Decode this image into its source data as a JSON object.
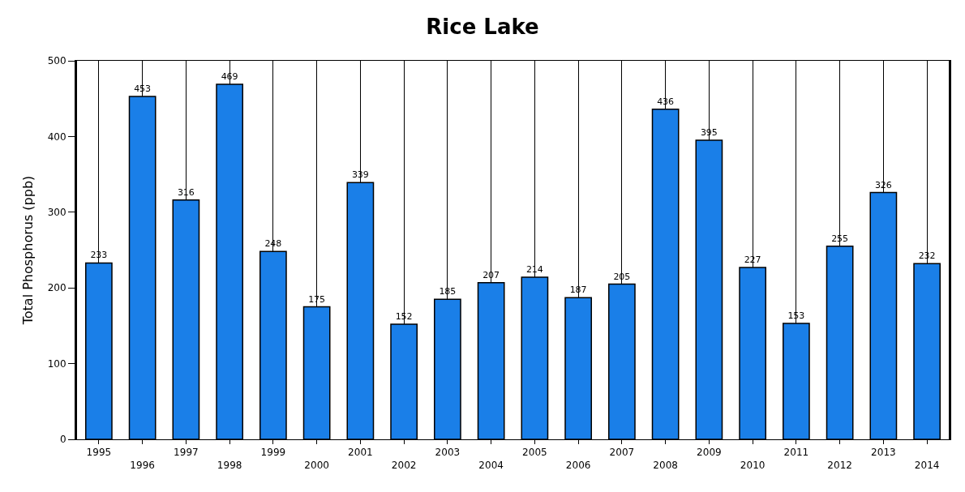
{
  "chart_data": {
    "type": "bar",
    "title": "Rice Lake",
    "ylabel": "Total Phosphorus (ppb)",
    "categories": [
      "1995",
      "1996",
      "1997",
      "1998",
      "1999",
      "2000",
      "2001",
      "2002",
      "2003",
      "2004",
      "2005",
      "2006",
      "2007",
      "2008",
      "2009",
      "2010",
      "2011",
      "2012",
      "2013",
      "2014"
    ],
    "series": [
      {
        "color": "#1a7fe8",
        "values": [
          233,
          453,
          316,
          469,
          248,
          175,
          339,
          152,
          185,
          207,
          214,
          187,
          205,
          436,
          395,
          227,
          153,
          255,
          326,
          232
        ]
      }
    ],
    "ylim": [
      0,
      500
    ],
    "yticks": [
      0,
      100,
      200,
      300,
      400,
      500
    ],
    "grid": "x",
    "data_labels": true
  }
}
